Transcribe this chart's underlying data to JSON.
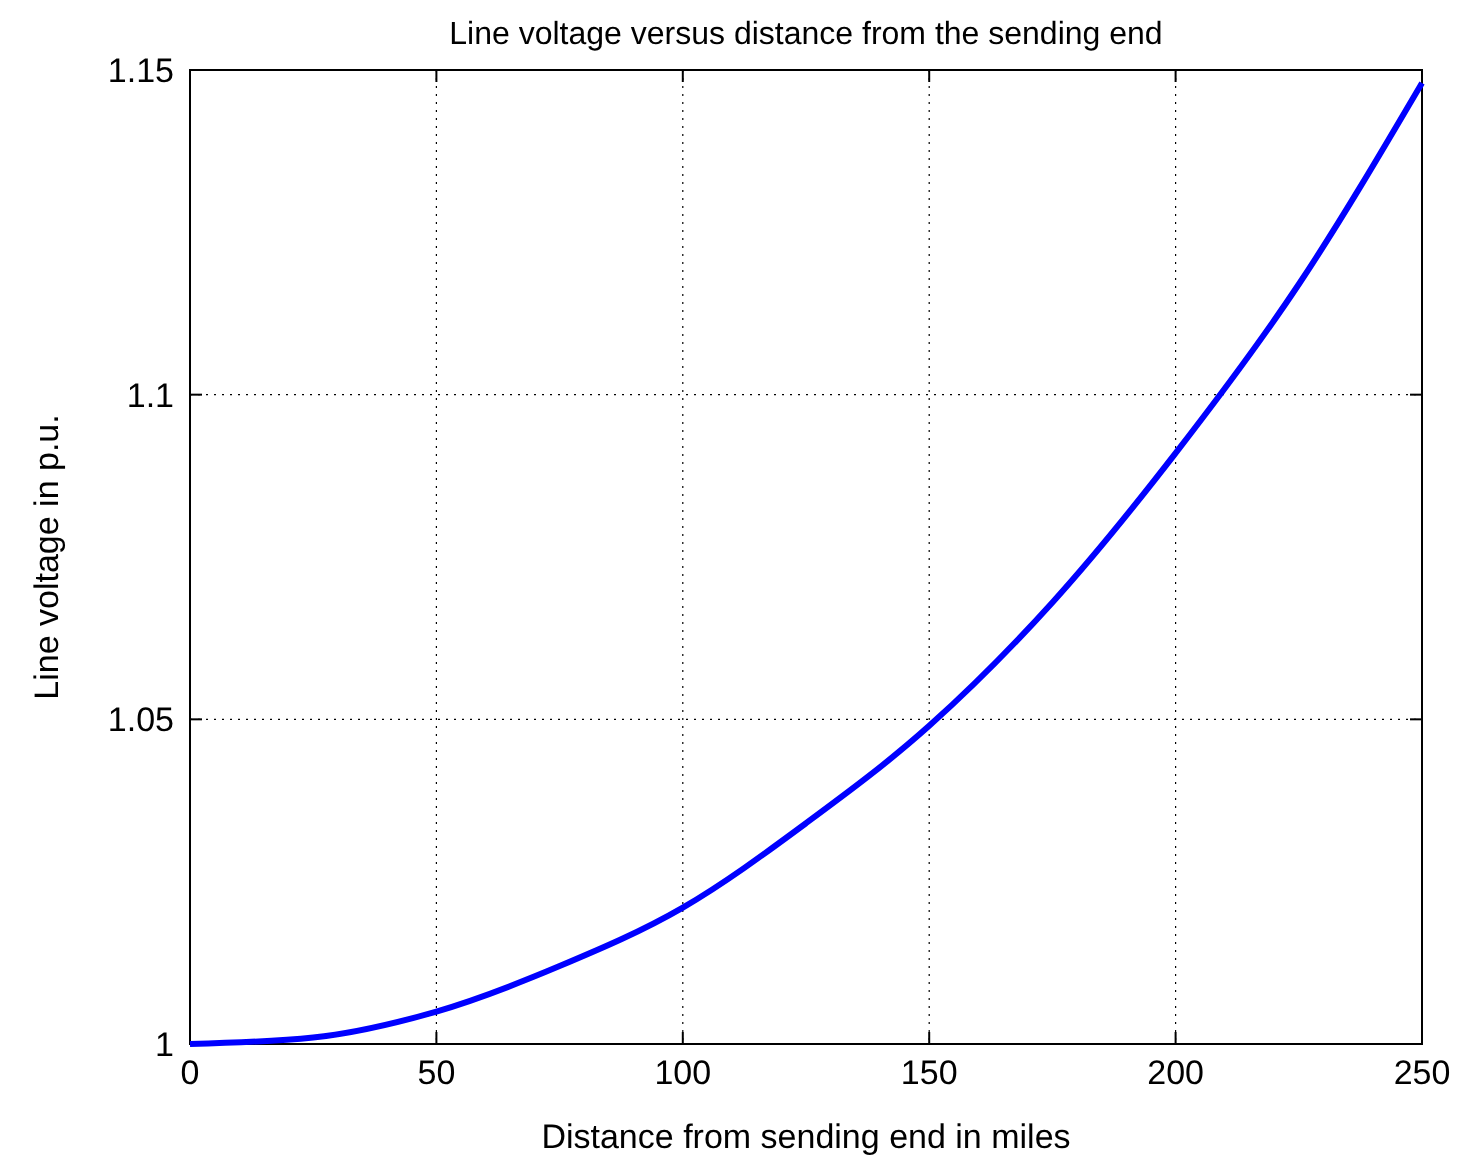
{
  "chart_data": {
    "type": "line",
    "title": "Line voltage versus distance from the sending end",
    "xlabel": "Distance from sending end in miles",
    "ylabel": "Line voltage in p.u.",
    "x": [
      0,
      25,
      50,
      75,
      100,
      125,
      150,
      175,
      200,
      225,
      250
    ],
    "series": [
      {
        "color": "#0000ff",
        "values": [
          1,
          1.001,
          1.005,
          1.012,
          1.021,
          1.034,
          1.049,
          1.068,
          1.091,
          1.117,
          1.148
        ]
      }
    ],
    "xlim": [
      0,
      250
    ],
    "ylim": [
      1,
      1.15
    ],
    "xticks": [
      0,
      50,
      100,
      150,
      200,
      250
    ],
    "yticks": [
      1,
      1.05,
      1.1,
      1.15
    ],
    "grid": true,
    "line_style": "solid",
    "marker": "none"
  }
}
